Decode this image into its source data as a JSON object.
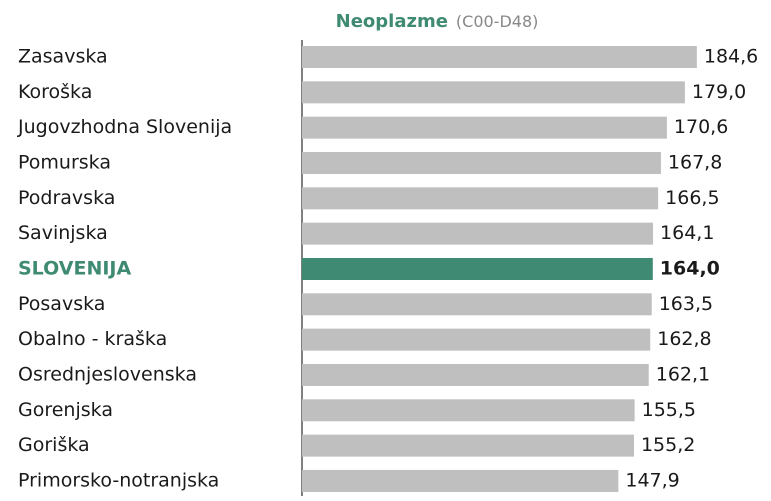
{
  "chart_data": {
    "type": "hbar",
    "title": "Neoplazme",
    "subtitle": "(C00-D48)",
    "categories": [
      "Zasavska",
      "Koroška",
      "Jugovzhodna Slovenija",
      "Pomurska",
      "Podravska",
      "Savinjska",
      "SLOVENIJA",
      "Posavska",
      "Obalno - kraška",
      "Osrednjeslovenska",
      "Gorenjska",
      "Goriška",
      "Primorsko-notranjska"
    ],
    "values": [
      184.6,
      179.0,
      170.6,
      167.8,
      166.5,
      164.1,
      164.0,
      163.5,
      162.8,
      162.1,
      155.5,
      155.2,
      147.9
    ],
    "value_labels": [
      "184,6",
      "179,0",
      "170,6",
      "167,8",
      "166,5",
      "164,1",
      "164,0",
      "163,5",
      "162,8",
      "162,1",
      "155,5",
      "155,2",
      "147,9"
    ],
    "colors": [
      "#bfbfbf",
      "#bfbfbf",
      "#bfbfbf",
      "#bfbfbf",
      "#bfbfbf",
      "#bfbfbf",
      "#3f8a72",
      "#bfbfbf",
      "#bfbfbf",
      "#bfbfbf",
      "#bfbfbf",
      "#bfbfbf",
      "#bfbfbf"
    ],
    "xlim": [
      0,
      188
    ]
  }
}
